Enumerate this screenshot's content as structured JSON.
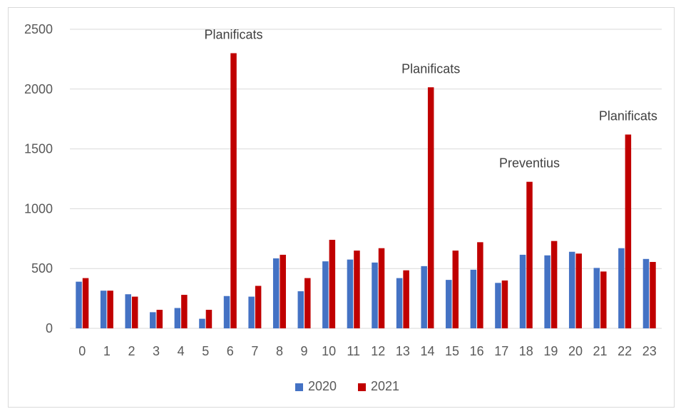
{
  "chart_data": {
    "type": "bar",
    "title": "",
    "xlabel": "",
    "ylabel": "",
    "categories": [
      "0",
      "1",
      "2",
      "3",
      "4",
      "5",
      "6",
      "7",
      "8",
      "9",
      "10",
      "11",
      "12",
      "13",
      "14",
      "15",
      "16",
      "17",
      "18",
      "19",
      "20",
      "21",
      "22",
      "23"
    ],
    "ylim": [
      0,
      2500
    ],
    "yticks": [
      0,
      500,
      1000,
      1500,
      2000,
      2500
    ],
    "grid": true,
    "legend_position": "bottom",
    "series": [
      {
        "name": "2020",
        "color": "#4472C4",
        "values": [
          390,
          315,
          285,
          135,
          170,
          80,
          270,
          265,
          585,
          310,
          560,
          575,
          550,
          420,
          520,
          405,
          490,
          380,
          615,
          610,
          640,
          505,
          670,
          580
        ]
      },
      {
        "name": "2021",
        "color": "#C00000",
        "values": [
          420,
          315,
          265,
          155,
          280,
          155,
          2300,
          355,
          615,
          420,
          740,
          650,
          670,
          485,
          2015,
          650,
          720,
          400,
          1225,
          730,
          625,
          475,
          1620,
          555
        ]
      }
    ],
    "annotations": [
      {
        "text": "Planificats",
        "category": "6",
        "series": "2021"
      },
      {
        "text": "Planificats",
        "category": "14",
        "series": "2021"
      },
      {
        "text": "Preventius",
        "category": "18",
        "series": "2021"
      },
      {
        "text": "Planificats",
        "category": "22",
        "series": "2021"
      }
    ]
  }
}
